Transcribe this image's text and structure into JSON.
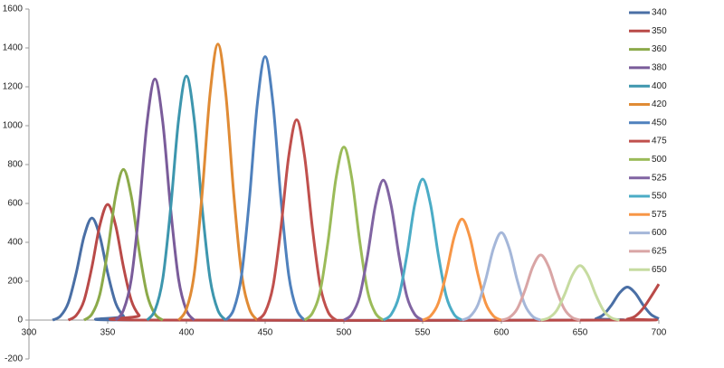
{
  "chart_data": {
    "type": "line",
    "xlim": [
      300,
      700
    ],
    "xticks": [
      300,
      350,
      400,
      450,
      500,
      550,
      600,
      650,
      700
    ],
    "ylim": [
      -200,
      1600
    ],
    "yticks": [
      -200,
      0,
      200,
      400,
      600,
      800,
      1000,
      1200,
      1400,
      1600
    ],
    "legend": "right",
    "series": [
      {
        "name": "340",
        "color": "#4a6fa5",
        "x": [
          315,
          320,
          325,
          330,
          335,
          340,
          345,
          350,
          355,
          360,
          365,
          655,
          660,
          665,
          670,
          675,
          680,
          685,
          690,
          695,
          700
        ],
        "values": [
          0,
          21,
          89,
          242,
          431,
          525,
          431,
          242,
          89,
          21,
          0,
          0,
          7,
          29,
          78,
          139,
          170,
          139,
          78,
          29,
          7
        ]
      },
      {
        "name": "350",
        "color": "#b94a48",
        "x": [
          325,
          330,
          335,
          340,
          345,
          350,
          355,
          360,
          365,
          370,
          375,
          675,
          680,
          685,
          690,
          695,
          700
        ],
        "values": [
          0,
          24,
          101,
          274,
          488,
          595,
          488,
          274,
          101,
          24,
          0,
          0,
          5,
          20,
          60,
          120,
          185
        ]
      },
      {
        "name": "360",
        "color": "#8caa4a",
        "x": [
          335,
          340,
          345,
          350,
          355,
          360,
          365,
          370,
          375,
          380,
          385
        ],
        "values": [
          0,
          31,
          132,
          357,
          636,
          775,
          636,
          357,
          132,
          31,
          0
        ]
      },
      {
        "name": "380",
        "color": "#7a5c9a",
        "x": [
          355,
          360,
          365,
          370,
          375,
          380,
          385,
          390,
          395,
          400,
          405
        ],
        "values": [
          0,
          50,
          211,
          570,
          1017,
          1240,
          1017,
          570,
          211,
          50,
          0
        ]
      },
      {
        "name": "400",
        "color": "#3d96ae",
        "x": [
          375,
          380,
          385,
          390,
          395,
          400,
          405,
          410,
          415,
          420,
          425
        ],
        "values": [
          0,
          50,
          213,
          577,
          1029,
          1255,
          1029,
          577,
          213,
          50,
          0
        ]
      },
      {
        "name": "420",
        "color": "#e08b35",
        "x": [
          395,
          400,
          405,
          410,
          415,
          420,
          425,
          430,
          435,
          440,
          445
        ],
        "values": [
          0,
          57,
          241,
          653,
          1164,
          1420,
          1164,
          653,
          241,
          57,
          0
        ]
      },
      {
        "name": "450",
        "color": "#4f81bd",
        "x": [
          425,
          430,
          435,
          440,
          445,
          450,
          455,
          460,
          465,
          470,
          475
        ],
        "values": [
          0,
          54,
          230,
          623,
          1111,
          1355,
          1111,
          623,
          230,
          54,
          0
        ]
      },
      {
        "name": "475",
        "color": "#c0504d",
        "x": [
          445,
          450,
          455,
          460,
          465,
          470,
          475,
          480,
          485,
          490,
          495
        ],
        "values": [
          0,
          41,
          175,
          474,
          845,
          1030,
          845,
          474,
          175,
          41,
          0
        ]
      },
      {
        "name": "500",
        "color": "#9bbb59",
        "x": [
          475,
          480,
          485,
          490,
          495,
          500,
          505,
          510,
          515,
          520,
          525
        ],
        "values": [
          0,
          36,
          151,
          409,
          730,
          890,
          730,
          409,
          151,
          36,
          0
        ]
      },
      {
        "name": "525",
        "color": "#8064a2",
        "x": [
          500,
          505,
          510,
          515,
          520,
          525,
          530,
          535,
          540,
          545,
          550
        ],
        "values": [
          0,
          29,
          122,
          331,
          590,
          720,
          590,
          331,
          122,
          29,
          0
        ]
      },
      {
        "name": "550",
        "color": "#4bacc6",
        "x": [
          525,
          530,
          535,
          540,
          545,
          550,
          555,
          560,
          565,
          570,
          575
        ],
        "values": [
          0,
          29,
          123,
          334,
          595,
          725,
          595,
          334,
          123,
          29,
          0
        ]
      },
      {
        "name": "575",
        "color": "#f79646",
        "x": [
          550,
          555,
          560,
          565,
          570,
          575,
          580,
          585,
          590,
          595,
          600
        ],
        "values": [
          0,
          21,
          88,
          239,
          426,
          520,
          426,
          239,
          88,
          21,
          0
        ]
      },
      {
        "name": "600",
        "color": "#a5b7d9",
        "x": [
          575,
          580,
          585,
          590,
          595,
          600,
          605,
          610,
          615,
          620,
          625
        ],
        "values": [
          0,
          18,
          77,
          207,
          369,
          450,
          369,
          207,
          77,
          18,
          0
        ]
      },
      {
        "name": "625",
        "color": "#d9a5a5",
        "x": [
          600,
          605,
          610,
          615,
          620,
          625,
          630,
          635,
          640,
          645,
          650
        ],
        "values": [
          0,
          13,
          57,
          154,
          275,
          335,
          275,
          154,
          57,
          13,
          0
        ]
      },
      {
        "name": "650",
        "color": "#c6dba0",
        "x": [
          625,
          630,
          635,
          640,
          645,
          650,
          655,
          660,
          665,
          670,
          675
        ],
        "values": [
          0,
          11,
          48,
          129,
          230,
          280,
          230,
          129,
          48,
          11,
          0
        ]
      }
    ]
  }
}
